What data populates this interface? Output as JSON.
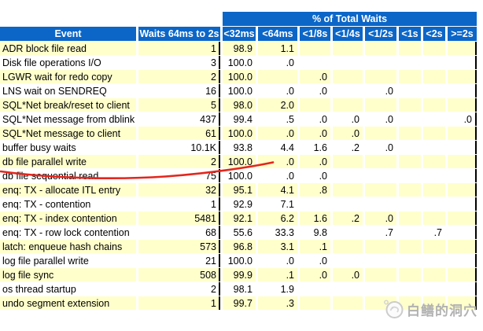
{
  "table": {
    "super_header": "% of Total Waits",
    "columns": [
      "Event",
      "Waits 64ms to 2s",
      "<32ms",
      "<64ms",
      "<1/8s",
      "<1/4s",
      "<1/2s",
      "<1s",
      "<2s",
      ">=2s"
    ],
    "rows": [
      {
        "event": "ADR block file read",
        "waits": "1",
        "pct": [
          "98.9",
          "1.1",
          "",
          "",
          "",
          "",
          "",
          ""
        ]
      },
      {
        "event": "Disk file operations I/O",
        "waits": "3",
        "pct": [
          "100.0",
          ".0",
          "",
          "",
          "",
          "",
          "",
          ""
        ]
      },
      {
        "event": "LGWR wait for redo copy",
        "waits": "2",
        "pct": [
          "100.0",
          "",
          ".0",
          "",
          "",
          "",
          "",
          ""
        ]
      },
      {
        "event": "LNS wait on SENDREQ",
        "waits": "16",
        "pct": [
          "100.0",
          ".0",
          ".0",
          "",
          ".0",
          "",
          "",
          ""
        ]
      },
      {
        "event": "SQL*Net break/reset to client",
        "waits": "5",
        "pct": [
          "98.0",
          "2.0",
          "",
          "",
          "",
          "",
          "",
          ""
        ]
      },
      {
        "event": "SQL*Net message from dblink",
        "waits": "437",
        "pct": [
          "99.4",
          ".5",
          ".0",
          ".0",
          ".0",
          "",
          "",
          ".0"
        ]
      },
      {
        "event": "SQL*Net message to client",
        "waits": "61",
        "pct": [
          "100.0",
          ".0",
          ".0",
          ".0",
          "",
          "",
          "",
          ""
        ]
      },
      {
        "event": "buffer busy waits",
        "waits": "10.1K",
        "pct": [
          "93.8",
          "4.4",
          "1.6",
          ".2",
          ".0",
          "",
          "",
          ""
        ]
      },
      {
        "event": "db file parallel write",
        "waits": "2",
        "pct": [
          "100.0",
          ".0",
          ".0",
          "",
          "",
          "",
          "",
          ""
        ]
      },
      {
        "event": "db file sequential read",
        "waits": "75",
        "pct": [
          "100.0",
          ".0",
          ".0",
          "",
          "",
          "",
          "",
          ""
        ]
      },
      {
        "event": "enq: TX - allocate ITL entry",
        "waits": "32",
        "pct": [
          "95.1",
          "4.1",
          ".8",
          "",
          "",
          "",
          "",
          ""
        ]
      },
      {
        "event": "enq: TX - contention",
        "waits": "1",
        "pct": [
          "92.9",
          "7.1",
          "",
          "",
          "",
          "",
          "",
          ""
        ]
      },
      {
        "event": "enq: TX - index contention",
        "waits": "5481",
        "pct": [
          "92.1",
          "6.2",
          "1.6",
          ".2",
          ".0",
          "",
          "",
          ""
        ]
      },
      {
        "event": "enq: TX - row lock contention",
        "waits": "68",
        "pct": [
          "55.6",
          "33.3",
          "9.8",
          "",
          ".7",
          "",
          ".7",
          ""
        ]
      },
      {
        "event": "latch: enqueue hash chains",
        "waits": "573",
        "pct": [
          "96.8",
          "3.1",
          ".1",
          "",
          "",
          "",
          "",
          ""
        ]
      },
      {
        "event": "log file parallel write",
        "waits": "21",
        "pct": [
          "100.0",
          ".0",
          ".0",
          "",
          "",
          "",
          "",
          ""
        ]
      },
      {
        "event": "log file sync",
        "waits": "508",
        "pct": [
          "99.9",
          ".1",
          ".0",
          ".0",
          "",
          "",
          "",
          ""
        ]
      },
      {
        "event": "os thread startup",
        "waits": "2",
        "pct": [
          "98.1",
          "1.9",
          "",
          "",
          "",
          "",
          "",
          ""
        ]
      },
      {
        "event": "undo segment extension",
        "waits": "1",
        "pct": [
          "99.7",
          ".3",
          "",
          "",
          "",
          "",
          "",
          ""
        ]
      }
    ]
  },
  "annotation": {
    "description": "hand-drawn red underline beneath buffer busy waits row",
    "color": "#e3261d"
  },
  "watermark": {
    "text": "白鳝的洞穴",
    "logo": "eel-cave-logo",
    "color": "#b2b2b2"
  },
  "colors": {
    "header_bg": "#0b66c8",
    "header_text": "#ffffff",
    "row_yellow": "#ffffcc",
    "row_white": "#ffffff",
    "cell_text": "#000000",
    "divider_black": "#000000"
  }
}
